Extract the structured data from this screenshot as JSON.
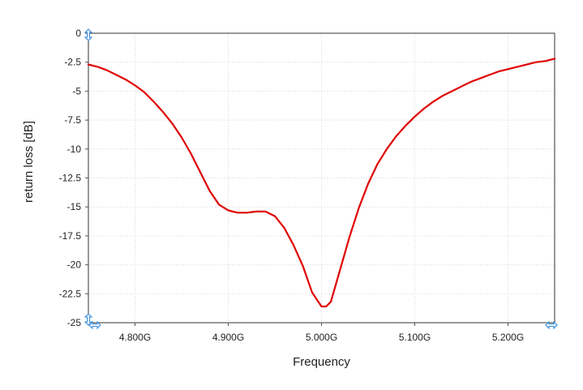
{
  "chart_data": {
    "type": "line",
    "title": "",
    "xlabel": "Frequency",
    "ylabel": "return loss [dB]",
    "xlim": [
      4.75,
      5.25
    ],
    "ylim": [
      -25,
      0
    ],
    "x_unit_note": "GHz",
    "xticks": [
      4.8,
      4.9,
      5.0,
      5.1,
      5.2
    ],
    "xtick_labels": [
      "4.800G",
      "4.900G",
      "5.000G",
      "5.100G",
      "5.200G"
    ],
    "yticks": [
      0,
      -2.5,
      -5,
      -7.5,
      -10,
      -12.5,
      -15,
      -17.5,
      -20,
      -22.5,
      -25
    ],
    "ytick_labels": [
      "0",
      "-2.5",
      "-5",
      "-7.5",
      "-10",
      "-12.5",
      "-15",
      "-17.5",
      "-20",
      "-22.5",
      "-25"
    ],
    "grid": true,
    "series": [
      {
        "color": "#e00000",
        "x": [
          4.75,
          4.76,
          4.77,
          4.78,
          4.79,
          4.8,
          4.81,
          4.82,
          4.83,
          4.84,
          4.85,
          4.86,
          4.87,
          4.88,
          4.89,
          4.9,
          4.91,
          4.92,
          4.93,
          4.94,
          4.95,
          4.96,
          4.97,
          4.98,
          4.99,
          5.0,
          5.005,
          5.01,
          5.02,
          5.03,
          5.04,
          5.05,
          5.06,
          5.07,
          5.08,
          5.09,
          5.1,
          5.11,
          5.12,
          5.13,
          5.14,
          5.15,
          5.16,
          5.17,
          5.18,
          5.19,
          5.2,
          5.21,
          5.22,
          5.23,
          5.24,
          5.25
        ],
        "y": [
          -2.7,
          -2.9,
          -3.2,
          -3.6,
          -4.0,
          -4.5,
          -5.1,
          -5.9,
          -6.8,
          -7.8,
          -9.0,
          -10.4,
          -12.0,
          -13.6,
          -14.8,
          -15.3,
          -15.5,
          -15.5,
          -15.4,
          -15.4,
          -15.8,
          -16.8,
          -18.3,
          -20.1,
          -22.4,
          -23.6,
          -23.6,
          -23.2,
          -20.4,
          -17.6,
          -15.1,
          -13.0,
          -11.3,
          -10.0,
          -8.9,
          -8.0,
          -7.2,
          -6.5,
          -5.9,
          -5.4,
          -5.0,
          -4.6,
          -4.2,
          -3.9,
          -3.6,
          -3.3,
          -3.1,
          -2.9,
          -2.7,
          -2.5,
          -2.4,
          -2.2
        ]
      }
    ]
  }
}
